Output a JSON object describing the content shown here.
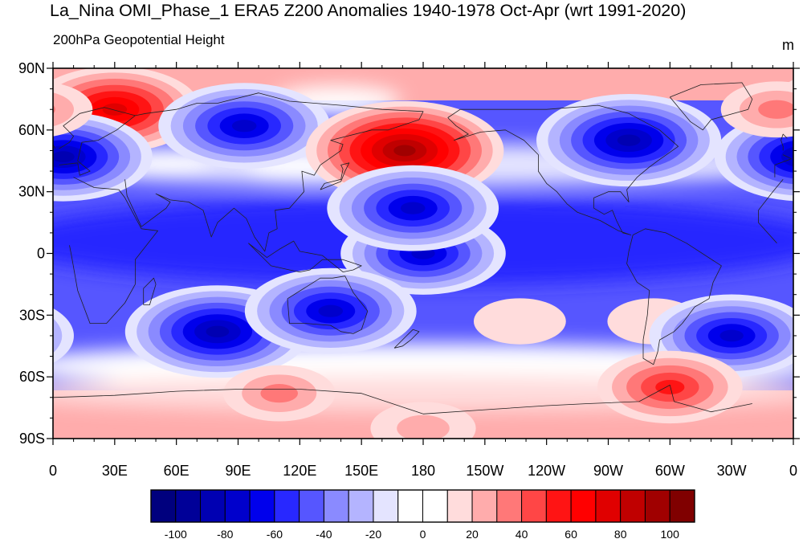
{
  "title": "La_Nina OMI_Phase_1 ERA5 Z200 Anomalies 1940-1978 Oct-Apr (wrt 1991-2020)",
  "left_subtitle": "200hPa Geopotential Height",
  "units": "m",
  "map": {
    "projection": "cylindrical equidistant",
    "lon_range": [
      0,
      360
    ],
    "lat_range": [
      -90,
      90
    ],
    "y_ticks": [
      {
        "lat": 90,
        "label": "90N"
      },
      {
        "lat": 60,
        "label": "60N"
      },
      {
        "lat": 30,
        "label": "30N"
      },
      {
        "lat": 0,
        "label": "0"
      },
      {
        "lat": -30,
        "label": "30S"
      },
      {
        "lat": -60,
        "label": "60S"
      },
      {
        "lat": -90,
        "label": "90S"
      }
    ],
    "x_ticks": [
      {
        "lon": 0,
        "label": "0"
      },
      {
        "lon": 30,
        "label": "30E"
      },
      {
        "lon": 60,
        "label": "60E"
      },
      {
        "lon": 90,
        "label": "90E"
      },
      {
        "lon": 120,
        "label": "120E"
      },
      {
        "lon": 150,
        "label": "150E"
      },
      {
        "lon": 180,
        "label": "180"
      },
      {
        "lon": 210,
        "label": "150W"
      },
      {
        "lon": 240,
        "label": "120W"
      },
      {
        "lon": 270,
        "label": "90W"
      },
      {
        "lon": 300,
        "label": "60W"
      },
      {
        "lon": 330,
        "label": "30W"
      },
      {
        "lon": 360,
        "label": "0"
      }
    ]
  },
  "colorbar": {
    "colors": [
      "#00007e",
      "#000098",
      "#0000b2",
      "#0000cc",
      "#0000ec",
      "#2828ff",
      "#5656ff",
      "#8a8aff",
      "#b4b4ff",
      "#e4e4ff",
      "#ffffff",
      "#ffffff",
      "#ffdcdc",
      "#ffacac",
      "#ff7878",
      "#ff4646",
      "#ff1414",
      "#ff0000",
      "#e00000",
      "#c00000",
      "#a00000",
      "#800000"
    ],
    "labels": [
      {
        "value": -100,
        "text": "-100"
      },
      {
        "value": -80,
        "text": "-80"
      },
      {
        "value": -60,
        "text": "-60"
      },
      {
        "value": -40,
        "text": "-40"
      },
      {
        "value": -20,
        "text": "-20"
      },
      {
        "value": 0,
        "text": "0"
      },
      {
        "value": 20,
        "text": "20"
      },
      {
        "value": 40,
        "text": "40"
      },
      {
        "value": 60,
        "text": "60"
      },
      {
        "value": 80,
        "text": "80"
      },
      {
        "value": 100,
        "text": "100"
      }
    ]
  },
  "anomaly_centers": [
    {
      "name": "anomaly-north-atlantic-europe-high",
      "lon": 30,
      "lat": 70,
      "value": 75
    },
    {
      "name": "anomaly-west-atlantic-low",
      "lon": 5,
      "lat": 47,
      "value": -80
    },
    {
      "name": "anomaly-north-asia-low",
      "lon": 93,
      "lat": 62,
      "value": -75
    },
    {
      "name": "anomaly-north-pacific-high",
      "lon": 171,
      "lat": 50,
      "value": 95
    },
    {
      "name": "anomaly-canada-low",
      "lon": 280,
      "lat": 55,
      "value": -85
    },
    {
      "name": "anomaly-greenland-high",
      "lon": 352,
      "lat": 70,
      "value": 30
    },
    {
      "name": "anomaly-tropical-band-low",
      "lon": 180,
      "lat": 0,
      "value": -70
    },
    {
      "name": "anomaly-tropical-central-pacific-low",
      "lon": 175,
      "lat": 22,
      "value": -75
    },
    {
      "name": "anomaly-south-indian-ocean-low",
      "lon": 80,
      "lat": -38,
      "value": -85
    },
    {
      "name": "anomaly-australia-low",
      "lon": 135,
      "lat": -28,
      "value": -75
    },
    {
      "name": "anomaly-south-pacific-high",
      "lon": 227,
      "lat": -33,
      "value": 15
    },
    {
      "name": "anomaly-south-america-high",
      "lon": 292,
      "lat": -33,
      "value": 15
    },
    {
      "name": "anomaly-south-atlantic-low",
      "lon": 330,
      "lat": -40,
      "value": -70
    },
    {
      "name": "anomaly-drake-passage-high",
      "lon": 300,
      "lat": -65,
      "value": 55
    },
    {
      "name": "anomaly-southern-ocean-high",
      "lon": 110,
      "lat": -68,
      "value": 30
    },
    {
      "name": "anomaly-antarctic-high",
      "lon": 180,
      "lat": -85,
      "value": 25
    }
  ]
}
